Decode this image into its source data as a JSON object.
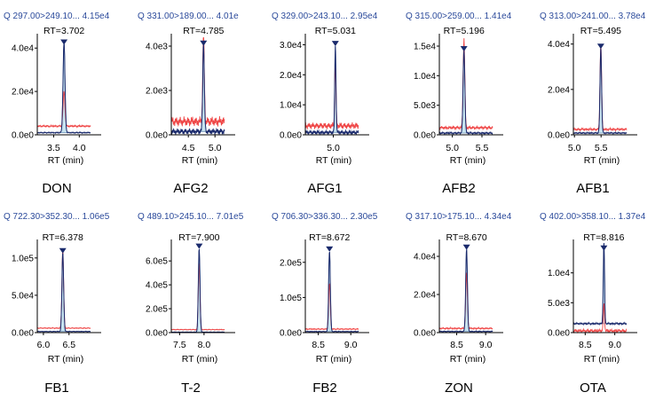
{
  "colors": {
    "header_text": "#2b4a9b",
    "axis": "#000000",
    "blue_trace": "#1a2a6c",
    "red_trace": "#ef4545",
    "peak_fill": "#c7e3ef",
    "peak_edge": "#6e93b8",
    "marker": "#1a2a6c"
  },
  "chart_data": [
    {
      "type": "line",
      "name": "DON",
      "header": "Q 297.00>249.10... 4.15e4",
      "rt_label": "RT=3.702",
      "rt": 3.702,
      "xlabel": "RT (min)",
      "xlim": [
        3.18,
        4.22
      ],
      "x_ticks": [
        3.5,
        4.0
      ],
      "x_tick_labels": [
        "3.5",
        "4.0"
      ],
      "ylim": [
        0,
        45000
      ],
      "y_ticks": [
        0,
        20000,
        40000
      ],
      "y_tick_labels": [
        "0.0e0",
        "2.0e4",
        "4.0e4"
      ],
      "peak_height": 41500,
      "peak_width": 0.045,
      "blue_baseline": 1000,
      "red_baseline": 4000,
      "red_peak": 16000,
      "red_scale": 1,
      "noise": 500
    },
    {
      "type": "line",
      "name": "AFG2",
      "header": "Q 331.00>189.00... 4.01e",
      "rt_label": "RT=4.785",
      "rt": 4.785,
      "xlabel": "RT (min)",
      "xlim": [
        4.18,
        5.18
      ],
      "x_ticks": [
        4.5,
        5.0
      ],
      "x_tick_labels": [
        "4.5",
        "5.0"
      ],
      "ylim": [
        0,
        4400
      ],
      "y_ticks": [
        0,
        2000,
        4000
      ],
      "y_tick_labels": [
        "0.0e0",
        "2.0e3",
        "4.0e3"
      ],
      "peak_height": 4010,
      "peak_width": 0.035,
      "blue_baseline": 150,
      "red_baseline": 600,
      "red_peak": 4000,
      "red_scale": 1,
      "noise": 250
    },
    {
      "type": "line",
      "name": "AFG1",
      "header": "Q 329.00>243.10... 2.95e4",
      "rt_label": "RT=5.031",
      "rt": 5.031,
      "xlabel": "RT (min)",
      "xlim": [
        4.58,
        5.38
      ],
      "x_ticks": [
        5.0
      ],
      "x_tick_labels": [
        "5.0"
      ],
      "ylim": [
        0,
        32500
      ],
      "y_ticks": [
        0,
        10000,
        20000,
        30000
      ],
      "y_tick_labels": [
        "0.0e0",
        "1.0e4",
        "2.0e4",
        "3.0e4"
      ],
      "peak_height": 29500,
      "peak_width": 0.022,
      "blue_baseline": 800,
      "red_baseline": 3000,
      "red_peak": 22000,
      "red_scale": 1,
      "noise": 1200
    },
    {
      "type": "line",
      "name": "AFB2",
      "header": "Q 315.00>259.00... 1.41e4",
      "rt_label": "RT=5.196",
      "rt": 5.196,
      "xlabel": "RT (min)",
      "xlim": [
        4.78,
        5.68
      ],
      "x_ticks": [
        5.0,
        5.5
      ],
      "x_tick_labels": [
        "5.0",
        "5.5"
      ],
      "ylim": [
        0,
        16500
      ],
      "y_ticks": [
        0,
        5000,
        10000,
        15000
      ],
      "y_tick_labels": [
        "0.0e0",
        "5.0e3",
        "1.0e4",
        "1.5e4"
      ],
      "peak_height": 14100,
      "peak_width": 0.035,
      "blue_baseline": 300,
      "red_baseline": 1200,
      "red_peak": 15000,
      "red_scale": 1,
      "noise": 300
    },
    {
      "type": "line",
      "name": "AFB1",
      "header": "Q 313.00>241.00... 3.78e4",
      "rt_label": "RT=5.495",
      "rt": 5.495,
      "xlabel": "RT (min)",
      "xlim": [
        4.98,
        5.98
      ],
      "x_ticks": [
        5.0,
        5.5
      ],
      "x_tick_labels": [
        "5.0",
        "5.5"
      ],
      "ylim": [
        0,
        43000
      ],
      "y_ticks": [
        0,
        20000,
        40000
      ],
      "y_tick_labels": [
        "0.0e0",
        "2.0e4",
        "4.0e4"
      ],
      "peak_height": 37800,
      "peak_width": 0.035,
      "blue_baseline": 800,
      "red_baseline": 2400,
      "red_peak": 38000,
      "red_scale": 1,
      "noise": 600
    },
    {
      "type": "line",
      "name": "FB1",
      "header": "Q 722.30>352.30... 1.06e5",
      "rt_label": "RT=6.378",
      "rt": 6.378,
      "xlabel": "RT (min)",
      "xlim": [
        5.88,
        6.92
      ],
      "x_ticks": [
        6.0,
        6.5
      ],
      "x_tick_labels": [
        "6.0",
        "6.5"
      ],
      "ylim": [
        0,
        120000
      ],
      "y_ticks": [
        0,
        50000,
        100000
      ],
      "y_tick_labels": [
        "0.0e0",
        "5.0e4",
        "1.0e5"
      ],
      "peak_height": 106000,
      "peak_width": 0.04,
      "blue_baseline": 1500,
      "red_baseline": 6000,
      "red_peak": 106000,
      "red_scale": 1,
      "noise": 800
    },
    {
      "type": "line",
      "name": "T-2",
      "header": "Q 489.10>245.10... 7.01e5",
      "rt_label": "RT=7.900",
      "rt": 7.9,
      "xlabel": "RT (min)",
      "xlim": [
        7.33,
        8.42
      ],
      "x_ticks": [
        7.5,
        8.0
      ],
      "x_tick_labels": [
        "7.5",
        "8.0"
      ],
      "ylim": [
        0,
        750000
      ],
      "y_ticks": [
        0,
        200000,
        400000,
        600000
      ],
      "y_tick_labels": [
        "0.0e0",
        "2.0e5",
        "4.0e5",
        "6.0e5"
      ],
      "peak_height": 701000,
      "peak_width": 0.04,
      "blue_baseline": 4000,
      "red_baseline": 25000,
      "red_peak": 560000,
      "red_scale": 1,
      "noise": 4000
    },
    {
      "type": "line",
      "name": "FB2",
      "header": "Q 706.30>336.30... 2.30e5",
      "rt_label": "RT=8.672",
      "rt": 8.672,
      "xlabel": "RT (min)",
      "xlim": [
        8.3,
        9.12
      ],
      "x_ticks": [
        8.5,
        9.0
      ],
      "x_tick_labels": [
        "8.5",
        "9.0"
      ],
      "ylim": [
        0,
        255000
      ],
      "y_ticks": [
        0,
        100000,
        200000
      ],
      "y_tick_labels": [
        "0.0e0",
        "1.0e5",
        "2.0e5"
      ],
      "peak_height": 230000,
      "peak_width": 0.03,
      "blue_baseline": 3000,
      "red_baseline": 10000,
      "red_peak": 130000,
      "red_scale": 1,
      "noise": 2000
    },
    {
      "type": "line",
      "name": "ZON",
      "header": "Q 317.10>175.10... 4.34e4",
      "rt_label": "RT=8.670",
      "rt": 8.67,
      "xlabel": "RT (min)",
      "xlim": [
        8.2,
        9.12
      ],
      "x_ticks": [
        8.5,
        9.0
      ],
      "x_tick_labels": [
        "8.5",
        "9.0"
      ],
      "ylim": [
        0,
        47000
      ],
      "y_ticks": [
        0,
        20000,
        40000
      ],
      "y_tick_labels": [
        "0.0e0",
        "2.0e4",
        "4.0e4"
      ],
      "peak_height": 43400,
      "peak_width": 0.035,
      "blue_baseline": 600,
      "red_baseline": 2200,
      "red_peak": 29000,
      "red_scale": 1,
      "noise": 500
    },
    {
      "type": "line",
      "name": "OTA",
      "header": "Q 402.00>358.10... 1.37e4",
      "rt_label": "RT=8.816",
      "rt": 8.816,
      "xlabel": "RT (min)",
      "xlim": [
        8.3,
        9.2
      ],
      "x_ticks": [
        8.5,
        9.0
      ],
      "x_tick_labels": [
        "8.5",
        "9.0"
      ],
      "ylim": [
        0,
        15000
      ],
      "y_ticks": [
        0,
        5000,
        10000
      ],
      "y_tick_labels": [
        "0.0e0",
        "5.0e3",
        "1.0e4"
      ],
      "peak_height": 13700,
      "peak_width": 0.025,
      "blue_baseline": 1500,
      "red_baseline": 300,
      "red_peak": 4500,
      "red_scale": 1,
      "noise": 300
    }
  ]
}
